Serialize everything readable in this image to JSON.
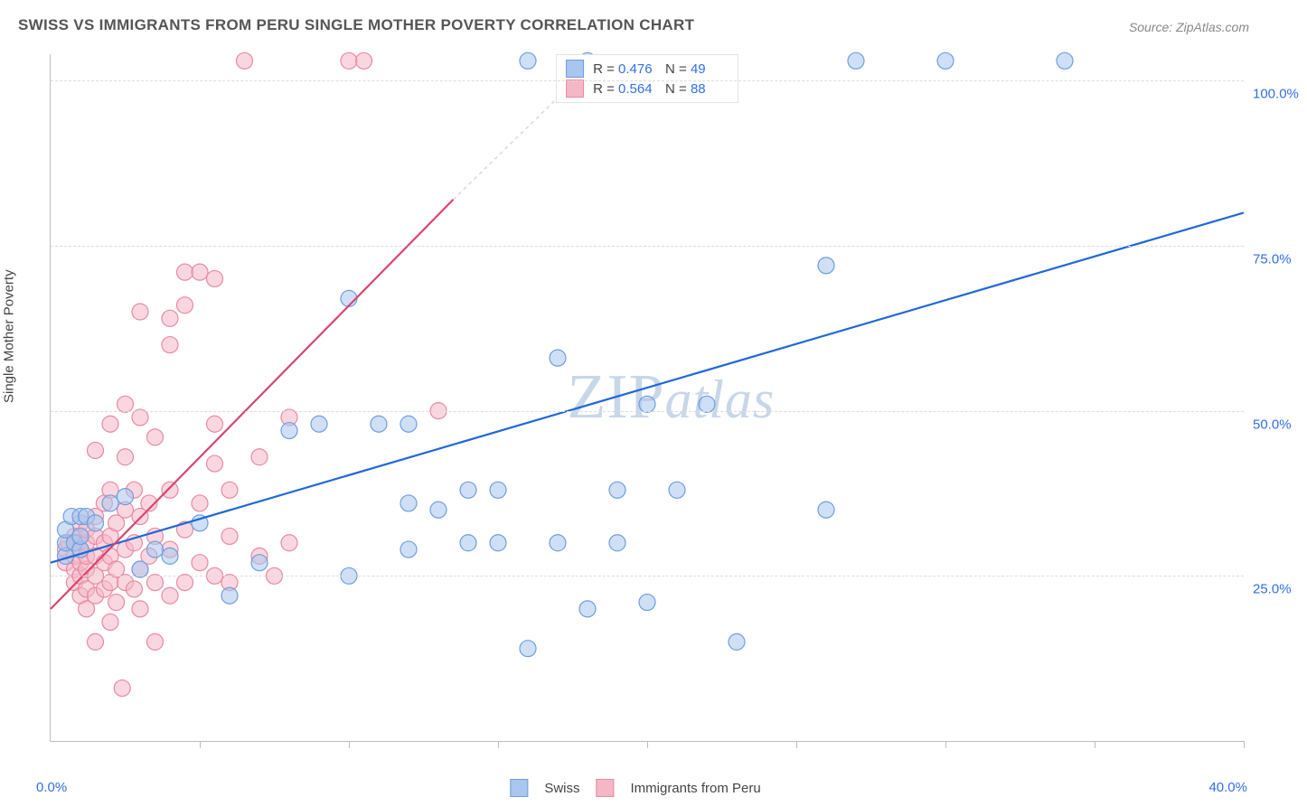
{
  "title": "SWISS VS IMMIGRANTS FROM PERU SINGLE MOTHER POVERTY CORRELATION CHART",
  "source": "Source: ZipAtlas.com",
  "y_axis_title": "Single Mother Poverty",
  "watermark": {
    "left": "ZIP",
    "right": "atlas"
  },
  "chart": {
    "type": "scatter",
    "background_color": "#ffffff",
    "grid_color": "#dcdcdc",
    "axis_color": "#bdbdbd",
    "xlim": [
      0,
      40
    ],
    "ylim": [
      0,
      104
    ],
    "x_ticks": [
      0,
      5,
      10,
      15,
      20,
      25,
      30,
      35,
      40
    ],
    "y_ticks": [
      25,
      50,
      75,
      100
    ],
    "x_tick_labels_left": "0.0%",
    "x_tick_labels_right": "40.0%",
    "y_tick_labels": [
      "25.0%",
      "50.0%",
      "75.0%",
      "100.0%"
    ],
    "label_color": "#326fe6",
    "label_fontsize": 15,
    "title_fontsize": 17,
    "marker_radius": 9,
    "marker_opacity": 0.55,
    "marker_stroke_width": 1.2,
    "line_width": 2.2
  },
  "series": {
    "swiss": {
      "label": "Swiss",
      "fill": "#a8c6ef",
      "stroke": "#6f9ede",
      "line_color": "#1f68d8",
      "r_value": "0.476",
      "n_value": "49",
      "trend": {
        "x1": 0,
        "y1": 27,
        "x2": 40,
        "y2": 80
      },
      "points": [
        [
          0.5,
          28
        ],
        [
          0.5,
          30
        ],
        [
          0.5,
          32
        ],
        [
          0.7,
          34
        ],
        [
          0.8,
          30
        ],
        [
          1,
          29
        ],
        [
          1,
          31
        ],
        [
          1,
          34
        ],
        [
          1.2,
          34
        ],
        [
          1.5,
          33
        ],
        [
          2,
          36
        ],
        [
          2.5,
          37
        ],
        [
          3,
          26
        ],
        [
          3.5,
          29
        ],
        [
          4,
          28
        ],
        [
          5,
          33
        ],
        [
          6,
          22
        ],
        [
          7,
          27
        ],
        [
          8,
          47
        ],
        [
          9,
          48
        ],
        [
          10,
          25
        ],
        [
          10,
          67
        ],
        [
          11,
          48
        ],
        [
          12,
          29
        ],
        [
          12,
          36
        ],
        [
          12,
          48
        ],
        [
          13,
          35
        ],
        [
          14,
          30
        ],
        [
          14,
          38
        ],
        [
          15,
          30
        ],
        [
          15,
          38
        ],
        [
          16,
          14
        ],
        [
          16,
          103
        ],
        [
          17,
          30
        ],
        [
          17,
          58
        ],
        [
          18,
          20
        ],
        [
          19,
          30
        ],
        [
          19,
          38
        ],
        [
          20,
          21
        ],
        [
          20,
          51
        ],
        [
          21,
          38
        ],
        [
          22,
          51
        ],
        [
          23,
          15
        ],
        [
          26,
          72
        ],
        [
          26,
          35
        ],
        [
          27,
          103
        ],
        [
          30,
          103
        ],
        [
          34,
          103
        ],
        [
          18,
          103
        ]
      ]
    },
    "peru": {
      "label": "Immigrants from Peru",
      "fill": "#f5b7c6",
      "stroke": "#e88aa3",
      "line_color": "#d7466f",
      "r_value": "0.564",
      "n_value": "88",
      "trend_solid": {
        "x1": 0,
        "y1": 20,
        "x2": 13.5,
        "y2": 82
      },
      "trend_dash": {
        "x1": 13.5,
        "y1": 82,
        "x2": 18.5,
        "y2": 104
      },
      "points": [
        [
          0.5,
          27
        ],
        [
          0.5,
          29
        ],
        [
          0.6,
          30
        ],
        [
          0.8,
          24
        ],
        [
          0.8,
          26
        ],
        [
          0.8,
          28
        ],
        [
          0.8,
          31
        ],
        [
          0.9,
          30
        ],
        [
          1,
          22
        ],
        [
          1,
          25
        ],
        [
          1,
          27
        ],
        [
          1,
          29
        ],
        [
          1,
          31
        ],
        [
          1,
          33
        ],
        [
          1.2,
          20
        ],
        [
          1.2,
          23
        ],
        [
          1.2,
          26
        ],
        [
          1.2,
          28
        ],
        [
          1.2,
          30
        ],
        [
          1.2,
          32
        ],
        [
          1.5,
          15
        ],
        [
          1.5,
          22
        ],
        [
          1.5,
          25
        ],
        [
          1.5,
          28
        ],
        [
          1.5,
          31
        ],
        [
          1.5,
          34
        ],
        [
          1.5,
          44
        ],
        [
          1.8,
          23
        ],
        [
          1.8,
          27
        ],
        [
          1.8,
          30
        ],
        [
          1.8,
          36
        ],
        [
          2,
          18
        ],
        [
          2,
          24
        ],
        [
          2,
          28
        ],
        [
          2,
          31
        ],
        [
          2,
          38
        ],
        [
          2,
          48
        ],
        [
          2.2,
          21
        ],
        [
          2.2,
          26
        ],
        [
          2.2,
          33
        ],
        [
          2.4,
          8
        ],
        [
          2.5,
          24
        ],
        [
          2.5,
          29
        ],
        [
          2.5,
          35
        ],
        [
          2.5,
          43
        ],
        [
          2.5,
          51
        ],
        [
          2.8,
          23
        ],
        [
          2.8,
          30
        ],
        [
          2.8,
          38
        ],
        [
          3,
          20
        ],
        [
          3,
          26
        ],
        [
          3,
          34
        ],
        [
          3,
          49
        ],
        [
          3,
          65
        ],
        [
          3.3,
          28
        ],
        [
          3.3,
          36
        ],
        [
          3.5,
          15
        ],
        [
          3.5,
          24
        ],
        [
          3.5,
          31
        ],
        [
          3.5,
          46
        ],
        [
          4,
          22
        ],
        [
          4,
          29
        ],
        [
          4,
          38
        ],
        [
          4,
          60
        ],
        [
          4,
          64
        ],
        [
          4.5,
          24
        ],
        [
          4.5,
          32
        ],
        [
          4.5,
          66
        ],
        [
          4.5,
          71
        ],
        [
          5,
          27
        ],
        [
          5,
          36
        ],
        [
          5,
          71
        ],
        [
          5.5,
          25
        ],
        [
          5.5,
          42
        ],
        [
          5.5,
          48
        ],
        [
          5.5,
          70
        ],
        [
          6,
          24
        ],
        [
          6,
          31
        ],
        [
          6,
          38
        ],
        [
          6.5,
          103
        ],
        [
          7,
          28
        ],
        [
          7,
          43
        ],
        [
          7.5,
          25
        ],
        [
          8,
          30
        ],
        [
          8,
          49
        ],
        [
          10,
          103
        ],
        [
          10.5,
          103
        ],
        [
          13,
          50
        ]
      ]
    }
  },
  "legend_top": {
    "r_prefix": "R =",
    "n_prefix": "N ="
  }
}
